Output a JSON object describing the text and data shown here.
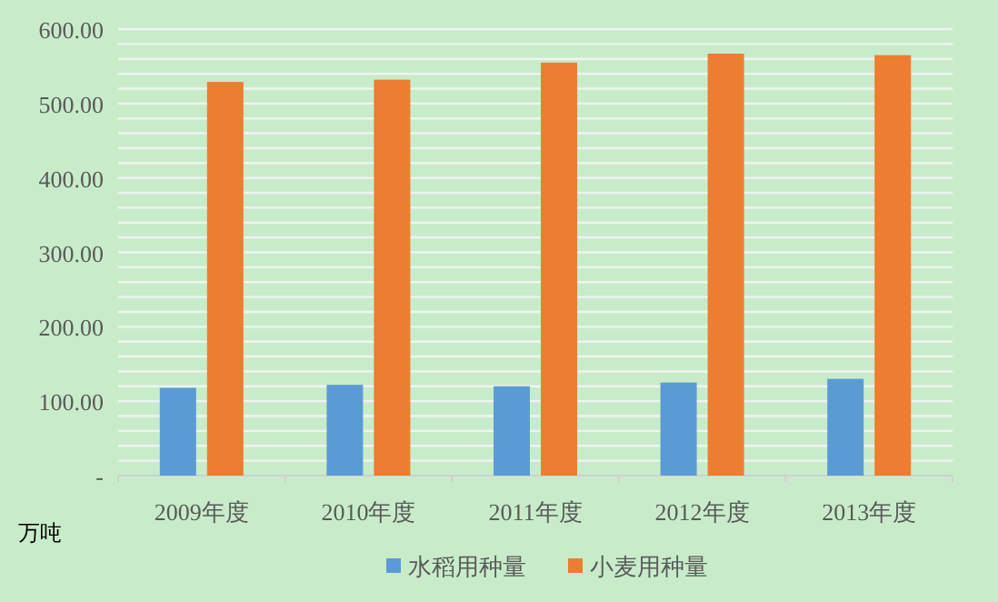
{
  "chart_data": {
    "type": "bar",
    "ylabel": "万吨",
    "categories": [
      "2009年度",
      "2010年度",
      "2011年度",
      "2012年度",
      "2013年度"
    ],
    "series": [
      {
        "name": "水稻用种量",
        "color": "#5b9bd5",
        "values": [
          118,
          122,
          120,
          125,
          130
        ]
      },
      {
        "name": "小麦用种量",
        "color": "#ed7d31",
        "values": [
          529,
          532,
          555,
          567,
          565
        ]
      }
    ],
    "ylim": [
      0,
      600
    ],
    "yticks": [
      {
        "value": 0,
        "label": "-"
      },
      {
        "value": 20,
        "label": null
      },
      {
        "value": 40,
        "label": null
      },
      {
        "value": 60,
        "label": null
      },
      {
        "value": 80,
        "label": null
      },
      {
        "value": 100,
        "label": "100.00"
      },
      {
        "value": 120,
        "label": null
      },
      {
        "value": 140,
        "label": null
      },
      {
        "value": 160,
        "label": null
      },
      {
        "value": 180,
        "label": null
      },
      {
        "value": 200,
        "label": "200.00"
      },
      {
        "value": 220,
        "label": null
      },
      {
        "value": 240,
        "label": null
      },
      {
        "value": 260,
        "label": null
      },
      {
        "value": 280,
        "label": null
      },
      {
        "value": 300,
        "label": "300.00"
      },
      {
        "value": 320,
        "label": null
      },
      {
        "value": 340,
        "label": null
      },
      {
        "value": 360,
        "label": null
      },
      {
        "value": 380,
        "label": null
      },
      {
        "value": 400,
        "label": "400.00"
      },
      {
        "value": 420,
        "label": null
      },
      {
        "value": 440,
        "label": null
      },
      {
        "value": 460,
        "label": null
      },
      {
        "value": 480,
        "label": null
      },
      {
        "value": 500,
        "label": "500.00"
      },
      {
        "value": 520,
        "label": null
      },
      {
        "value": 540,
        "label": null
      },
      {
        "value": 560,
        "label": null
      },
      {
        "value": 580,
        "label": null
      },
      {
        "value": 600,
        "label": "600.00"
      }
    ],
    "grid": "y",
    "legend": "bottom"
  }
}
